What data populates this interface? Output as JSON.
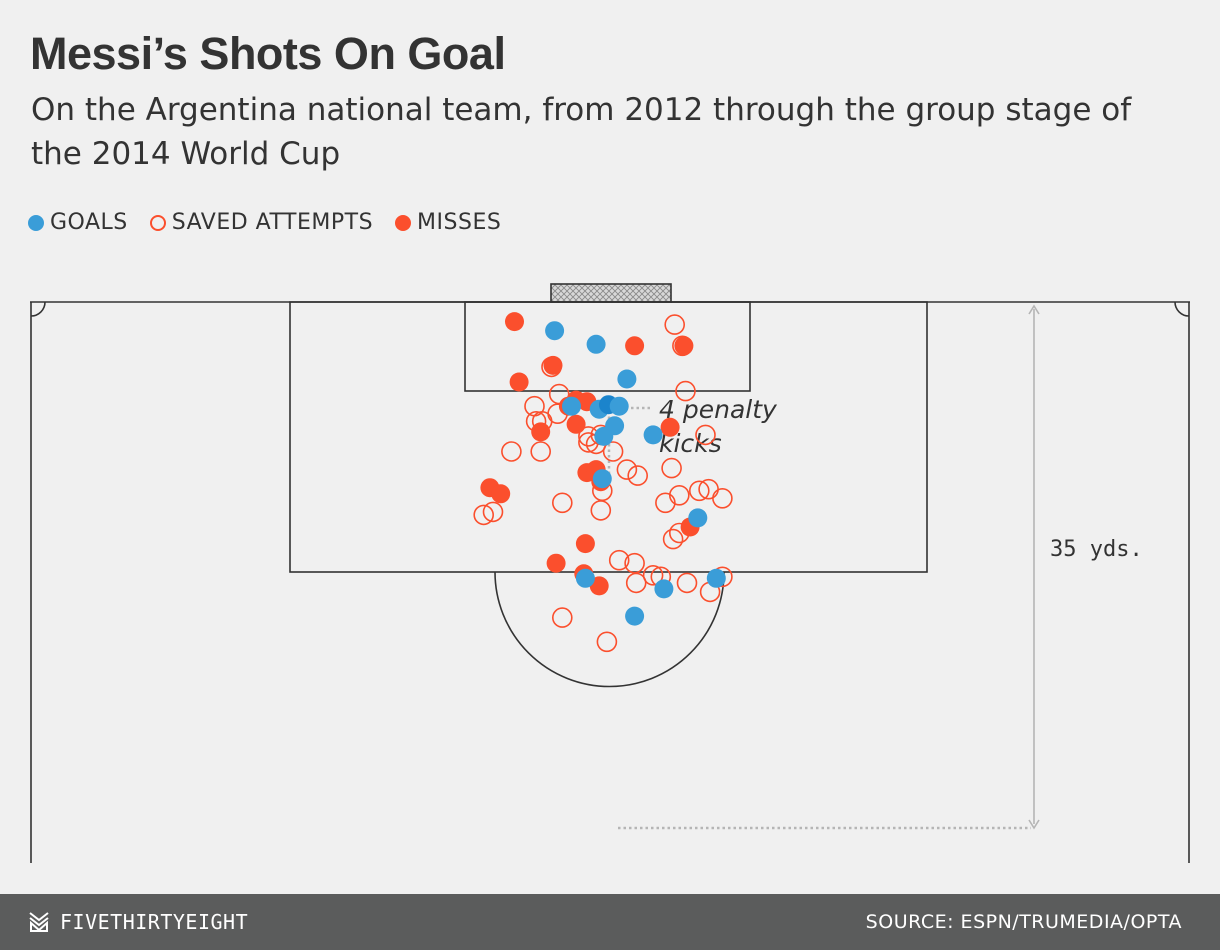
{
  "title": "Messi’s Shots On Goal",
  "subtitle": "On the Argentina national team, from 2012 through the group stage of the 2014 World Cup",
  "legend": {
    "goals": "GOALS",
    "saved": "SAVED ATTEMPTS",
    "misses": "MISSES"
  },
  "annotations": {
    "penalty": [
      "4 penalty",
      "kicks"
    ],
    "distance": "35 yds."
  },
  "footer": {
    "brand": "FIVETHIRTYEIGHT",
    "source": "SOURCE: ESPN/TRUMEDIA/OPTA"
  },
  "colors": {
    "goal": "#3a9dd8",
    "miss": "#fb4f2d",
    "saved_stroke": "#fb4f2d",
    "lines": "#333333",
    "penalty_dot": "#1b84cc"
  },
  "chart_data": {
    "type": "scatter",
    "title": "Messi’s Shots On Goal",
    "xlabel": "",
    "ylabel": "",
    "units_note": "x = yards across the pitch (goal center = 0, negative = left); y = yards from goal line",
    "xlim": [
      -21.5,
      21.5
    ],
    "ylim": [
      0,
      35
    ],
    "series": [
      {
        "name": "GOALS",
        "kind": "goal",
        "points": [
          [
            -3.6,
            1.9
          ],
          [
            -0.9,
            2.8
          ],
          [
            1.1,
            5.1
          ],
          [
            -2.5,
            6.9
          ],
          [
            -0.7,
            7.1
          ],
          [
            -0.1,
            6.8
          ],
          [
            0.6,
            6.9
          ],
          [
            0.3,
            8.2
          ],
          [
            2.8,
            8.8
          ],
          [
            -0.4,
            8.9
          ],
          [
            -0.5,
            11.7
          ],
          [
            5.7,
            14.3
          ],
          [
            -1.6,
            18.3
          ],
          [
            3.5,
            19.0
          ],
          [
            6.9,
            18.3
          ],
          [
            1.6,
            20.8
          ]
        ]
      },
      {
        "name": "SAVED ATTEMPTS",
        "kind": "saved",
        "points": [
          [
            4.2,
            1.5
          ],
          [
            4.7,
            2.9
          ],
          [
            4.9,
            5.9
          ],
          [
            -3.8,
            4.3
          ],
          [
            -3.3,
            6.1
          ],
          [
            -4.9,
            6.9
          ],
          [
            -3.4,
            7.4
          ],
          [
            -4.8,
            7.9
          ],
          [
            -4.4,
            7.9
          ],
          [
            -1.4,
            8.9
          ],
          [
            -0.6,
            8.8
          ],
          [
            6.2,
            8.8
          ],
          [
            -1.4,
            9.3
          ],
          [
            -0.9,
            9.4
          ],
          [
            0.2,
            9.9
          ],
          [
            -6.4,
            9.9
          ],
          [
            -4.5,
            9.9
          ],
          [
            1.1,
            11.1
          ],
          [
            4.0,
            11.0
          ],
          [
            1.8,
            11.5
          ],
          [
            -0.5,
            12.5
          ],
          [
            -3.1,
            13.3
          ],
          [
            -0.6,
            13.8
          ],
          [
            3.6,
            13.3
          ],
          [
            4.5,
            12.8
          ],
          [
            5.8,
            12.5
          ],
          [
            6.4,
            12.4
          ],
          [
            7.3,
            13.0
          ],
          [
            -8.2,
            14.1
          ],
          [
            -7.6,
            13.9
          ],
          [
            4.5,
            15.3
          ],
          [
            4.1,
            15.7
          ],
          [
            0.6,
            17.1
          ],
          [
            1.6,
            17.3
          ],
          [
            2.8,
            18.1
          ],
          [
            3.3,
            18.2
          ],
          [
            1.7,
            18.6
          ],
          [
            5.0,
            18.6
          ],
          [
            6.5,
            19.2
          ],
          [
            7.3,
            18.2
          ],
          [
            -3.1,
            20.9
          ],
          [
            -0.2,
            22.5
          ]
        ]
      },
      {
        "name": "MISSES",
        "kind": "miss",
        "points": [
          [
            -6.2,
            1.3
          ],
          [
            1.6,
            2.9
          ],
          [
            4.8,
            2.9
          ],
          [
            -3.7,
            4.2
          ],
          [
            -5.9,
            5.3
          ],
          [
            -2.2,
            6.5
          ],
          [
            -1.5,
            6.6
          ],
          [
            -2.7,
            6.9
          ],
          [
            -2.2,
            8.1
          ],
          [
            -4.5,
            8.6
          ],
          [
            3.9,
            8.3
          ],
          [
            -1.5,
            11.3
          ],
          [
            -0.9,
            11.1
          ],
          [
            -0.6,
            11.9
          ],
          [
            -7.8,
            12.3
          ],
          [
            -7.1,
            12.7
          ],
          [
            5.2,
            14.9
          ],
          [
            -1.6,
            16.0
          ],
          [
            -3.5,
            17.3
          ],
          [
            -1.7,
            18.0
          ],
          [
            -0.7,
            18.8
          ]
        ]
      }
    ],
    "penalty_kicks": {
      "count": 4,
      "point": [
        -0.1,
        6.8
      ]
    },
    "distance_marker": {
      "label": "35 yds.",
      "from_y": 0,
      "to_y": 35
    }
  }
}
